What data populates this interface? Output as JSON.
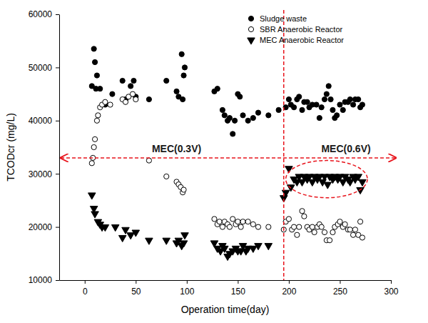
{
  "chart_data": {
    "type": "scatter",
    "x_label": "Operation time(day)",
    "y_label": "TCODcr (mg/L)",
    "xlim": [
      -25,
      300
    ],
    "xticks": [
      0,
      50,
      100,
      150,
      200,
      250,
      300
    ],
    "ylim": [
      10000,
      60000
    ],
    "yticks": [
      10000,
      20000,
      30000,
      40000,
      50000,
      60000
    ],
    "grid": false,
    "legend": "upper right",
    "series": [
      {
        "name": "Sludge waste",
        "color": "#000000",
        "marker": "circle",
        "x": [
          7,
          9,
          10,
          11,
          12,
          15,
          20,
          27,
          37,
          40,
          45,
          48,
          50,
          63,
          80,
          90,
          92,
          95,
          96,
          97,
          98,
          127,
          130,
          135,
          137,
          140,
          142,
          145,
          147,
          150,
          152,
          155,
          160,
          165,
          170,
          180,
          190,
          197,
          200,
          202,
          205,
          208,
          210,
          213,
          215,
          218,
          220,
          223,
          227,
          230,
          232,
          235,
          237,
          239,
          241,
          243,
          245,
          247,
          250,
          253,
          255,
          258,
          260,
          263,
          265,
          268,
          270,
          272
        ],
        "values": [
          46500,
          53500,
          51000,
          46000,
          48500,
          46000,
          43000,
          45000,
          47500,
          44000,
          46500,
          47500,
          44500,
          44000,
          47500,
          45500,
          44500,
          52500,
          44000,
          48500,
          50000,
          45500,
          46000,
          42000,
          41000,
          40000,
          40500,
          37500,
          40000,
          45000,
          44500,
          41000,
          40000,
          40500,
          41500,
          41000,
          42000,
          42500,
          44000,
          43000,
          42500,
          44000,
          44500,
          42000,
          43500,
          43500,
          42500,
          43000,
          43000,
          40500,
          42500,
          44000,
          45000,
          46500,
          44000,
          42000,
          40500,
          41000,
          43000,
          42000,
          43500,
          43500,
          44000,
          43000,
          44000,
          44000,
          42500,
          43000
        ]
      },
      {
        "name": "SBR Anaerobic Reactor",
        "color": "#000000",
        "marker": "circle-open",
        "x": [
          7,
          8,
          9,
          10,
          12,
          13,
          15,
          17,
          20,
          25,
          37,
          40,
          43,
          47,
          50,
          63,
          80,
          90,
          92,
          94,
          96,
          97,
          127,
          130,
          132,
          135,
          137,
          140,
          142,
          145,
          148,
          150,
          153,
          155,
          160,
          165,
          170,
          180,
          195,
          197,
          200,
          203,
          205,
          208,
          210,
          213,
          215,
          218,
          220,
          223,
          225,
          228,
          230,
          232,
          235,
          237,
          240,
          243,
          245,
          248,
          250,
          253,
          255,
          258,
          260,
          263,
          265,
          268,
          270,
          272
        ],
        "values": [
          32000,
          33000,
          35000,
          36500,
          40000,
          41000,
          42500,
          43000,
          43500,
          43000,
          44000,
          43500,
          44500,
          45000,
          44000,
          32500,
          29500,
          28500,
          28000,
          27500,
          26500,
          27000,
          21500,
          20500,
          21000,
          20000,
          21000,
          20500,
          20000,
          21500,
          20500,
          21000,
          20000,
          21000,
          21000,
          20500,
          20000,
          20000,
          19500,
          21000,
          21500,
          19500,
          20000,
          18500,
          20000,
          23000,
          22000,
          20000,
          19500,
          20000,
          19000,
          20000,
          20500,
          20000,
          19000,
          17500,
          17500,
          19000,
          20000,
          20500,
          21000,
          20000,
          20500,
          19500,
          19500,
          18500,
          19500,
          18500,
          21000,
          18000
        ]
      },
      {
        "name": "MEC Anaerobic Reactor",
        "color": "#000000",
        "marker": "triangle-down",
        "x": [
          7,
          9,
          10,
          13,
          15,
          17,
          20,
          30,
          37,
          40,
          45,
          50,
          63,
          80,
          90,
          92,
          95,
          97,
          98,
          127,
          130,
          133,
          135,
          137,
          140,
          142,
          145,
          148,
          150,
          153,
          155,
          158,
          160,
          165,
          170,
          180,
          195,
          197,
          200,
          202,
          205,
          208,
          210,
          213,
          215,
          218,
          220,
          223,
          225,
          228,
          230,
          233,
          235,
          238,
          240,
          243,
          245,
          248,
          250,
          253,
          255,
          258,
          260,
          263,
          265,
          268,
          270,
          272
        ],
        "values": [
          26000,
          23500,
          22500,
          21000,
          20500,
          20000,
          20000,
          20000,
          18000,
          19500,
          18500,
          19000,
          17500,
          17500,
          17000,
          17500,
          16500,
          17000,
          18500,
          17000,
          16000,
          15500,
          16500,
          16000,
          14500,
          15000,
          15500,
          16000,
          15500,
          15500,
          16500,
          15500,
          16000,
          16000,
          16500,
          16500,
          25500,
          26500,
          31000,
          27500,
          29000,
          28500,
          29500,
          28500,
          29500,
          29000,
          29500,
          28500,
          29500,
          29000,
          29500,
          28500,
          29500,
          28000,
          29500,
          29000,
          29500,
          29000,
          29500,
          28500,
          29500,
          29000,
          28500,
          29500,
          29000,
          29500,
          27000,
          28500
        ]
      }
    ],
    "annotations": [
      {
        "type": "text",
        "text": "MEC(0.3V)",
        "x": 90,
        "y": 34000
      },
      {
        "type": "text",
        "text": "MEC(0.6V)",
        "x": 256,
        "y": 34000
      },
      {
        "type": "vline",
        "x": 195
      },
      {
        "type": "arrow",
        "x": [
          -25,
          305
        ],
        "y": 33000
      },
      {
        "type": "ellipse",
        "x": [
          197,
          277
        ],
        "y": [
          25500,
          32500
        ]
      }
    ]
  }
}
